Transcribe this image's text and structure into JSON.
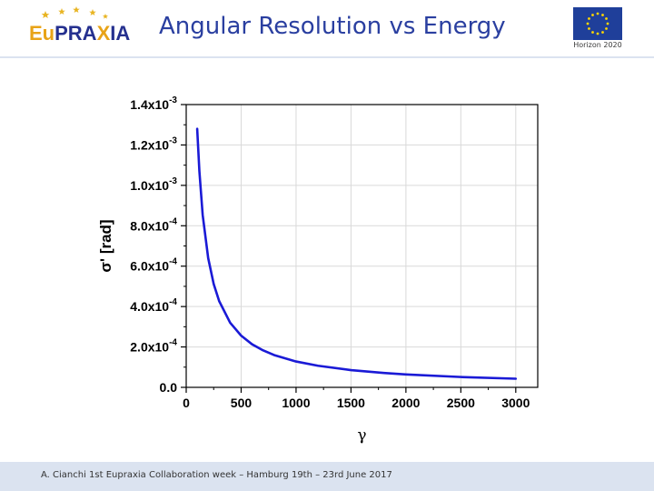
{
  "header": {
    "title": "Angular Resolution vs Energy",
    "logo": {
      "brand_text": "EuPRAXIA"
    },
    "eu_flag": {
      "caption": "Horizon 2020"
    }
  },
  "footer": {
    "text": "A. Cianchi 1st Eupraxia Collaboration week – Hamburg 19th – 23rd June 2017"
  },
  "colors": {
    "curve": "#1a1ad6",
    "title": "#2a3fa0",
    "band": "#dbe3f0",
    "flag": "#1f3f9a",
    "star": "#ffd700"
  },
  "chart_data": {
    "type": "line",
    "title": "",
    "xlabel": "γ",
    "ylabel": "σ' [rad]",
    "xlim": [
      0,
      3200
    ],
    "ylim": [
      0,
      0.0014
    ],
    "grid": true,
    "x_ticks": [
      0,
      500,
      1000,
      1500,
      2000,
      2500,
      3000
    ],
    "x_tick_labels": [
      "0",
      "500",
      "1000",
      "1500",
      "2000",
      "2500",
      "3000"
    ],
    "y_ticks": [
      {
        "value": 0.0,
        "mantissa": "0.0",
        "exponent": ""
      },
      {
        "value": 0.0002,
        "mantissa": "2.0x10",
        "exponent": "-4"
      },
      {
        "value": 0.0004,
        "mantissa": "4.0x10",
        "exponent": "-4"
      },
      {
        "value": 0.0006,
        "mantissa": "6.0x10",
        "exponent": "-4"
      },
      {
        "value": 0.0008,
        "mantissa": "8.0x10",
        "exponent": "-4"
      },
      {
        "value": 0.001,
        "mantissa": "1.0x10",
        "exponent": "-3"
      },
      {
        "value": 0.0012,
        "mantissa": "1.2x10",
        "exponent": "-3"
      },
      {
        "value": 0.0014,
        "mantissa": "1.4x10",
        "exponent": "-3"
      }
    ],
    "series": [
      {
        "name": "σ'",
        "x": [
          100,
          120,
          150,
          200,
          250,
          300,
          400,
          500,
          600,
          700,
          800,
          1000,
          1200,
          1500,
          1800,
          2000,
          2500,
          3000
        ],
        "y": [
          0.00128,
          0.00107,
          0.000853,
          0.00064,
          0.000512,
          0.000427,
          0.00032,
          0.000256,
          0.000213,
          0.000183,
          0.00016,
          0.000128,
          0.000107,
          8.53e-05,
          7.11e-05,
          6.4e-05,
          5.12e-05,
          4.27e-05
        ]
      }
    ]
  }
}
